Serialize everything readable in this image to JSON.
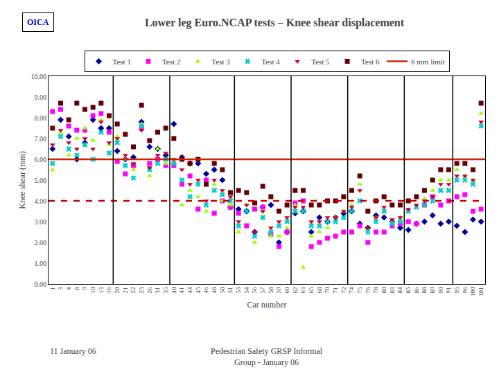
{
  "chart_data": {
    "type": "scatter",
    "title": "Lower leg Euro.NCAP tests – Knee shear displacement",
    "xlabel": "Car number",
    "ylabel": "Knee shear (mm)",
    "categories": [
      "1",
      "3",
      "4",
      "8",
      "9",
      "10",
      "13",
      "16",
      "20",
      "21",
      "22",
      "23",
      "26",
      "31",
      "35",
      "40",
      "41",
      "44",
      "45",
      "46",
      "48",
      "50",
      "51",
      "53",
      "54",
      "56",
      "57",
      "58",
      "59",
      "60",
      "62",
      "63",
      "65",
      "68",
      "70",
      "71",
      "72",
      "74",
      "75",
      "76",
      "78",
      "80",
      "83",
      "84",
      "85",
      "86",
      "88",
      "89",
      "90",
      "91",
      "95",
      "96",
      "100",
      "101"
    ],
    "ylim": [
      0,
      10
    ],
    "yticks": [
      {
        "value": 0.0,
        "label": "0.00"
      },
      {
        "value": 1.0,
        "label": "1.00"
      },
      {
        "value": 2.0,
        "label": "2.00"
      },
      {
        "value": 3.0,
        "label": "3.00"
      },
      {
        "value": 4.0,
        "label": "4.00"
      },
      {
        "value": 5.0,
        "label": "5.00"
      },
      {
        "value": 6.0,
        "label": "6.00"
      },
      {
        "value": 7.0,
        "label": "7.00"
      },
      {
        "value": 8.0,
        "label": "8.00"
      },
      {
        "value": 9.0,
        "label": "9.00"
      },
      {
        "value": 10.0,
        "label": "10.00"
      }
    ],
    "grid": false,
    "legend": "top",
    "series": [
      {
        "name": "Test 1",
        "color": "#000099",
        "marker": "diamond",
        "values": [
          6.5,
          7.9,
          7.1,
          6.0,
          6.8,
          7.9,
          7.5,
          7.5,
          6.4,
          6.0,
          6.1,
          7.8,
          6.6,
          6.5,
          6.2,
          7.7,
          6.1,
          5.8,
          5.8,
          5.3,
          5.5,
          5.0,
          3.7,
          3.6,
          3.5,
          2.5,
          3.7,
          3.8,
          2.0,
          2.5,
          3.4,
          3.5,
          2.5,
          3.2,
          3.0,
          3.2,
          3.4,
          3.5,
          2.9,
          2.7,
          3.3,
          3.2,
          3.0,
          2.7,
          2.6,
          2.9,
          3.0,
          3.3,
          2.9,
          3.0,
          2.8,
          2.5,
          3.1,
          3.0
        ]
      },
      {
        "name": "Test 2",
        "color": "#FF00FF",
        "marker": "square",
        "values": [
          8.3,
          8.4,
          7.6,
          7.4,
          7.4,
          8.1,
          8.2,
          7.3,
          5.9,
          5.3,
          5.7,
          7.5,
          5.8,
          6.0,
          5.7,
          5.7,
          4.8,
          5.2,
          3.6,
          5.0,
          3.4,
          4.0,
          3.7,
          3.4,
          2.8,
          3.6,
          3.7,
          2.4,
          1.8,
          2.5,
          3.9,
          4.0,
          1.8,
          2.0,
          2.2,
          2.3,
          2.5,
          2.5,
          2.8,
          2.0,
          2.5,
          2.5,
          2.8,
          2.9,
          3.0,
          2.9,
          3.8,
          4.2,
          3.8,
          4.0,
          4.2,
          4.3,
          3.5,
          3.6
        ]
      },
      {
        "name": "Test 3",
        "color": "#99FF00",
        "marker": "triangle-up",
        "values": [
          5.5,
          7.3,
          6.2,
          7.0,
          7.5,
          6.9,
          7.9,
          6.7,
          7.1,
          6.0,
          5.5,
          7.7,
          5.2,
          6.5,
          5.8,
          6.0,
          3.8,
          4.5,
          4.2,
          3.5,
          4.8,
          4.0,
          3.8,
          2.5,
          3.8,
          2.0,
          3.5,
          2.3,
          2.3,
          2.7,
          3.8,
          0.8,
          2.3,
          2.5,
          2.7,
          3.2,
          3.5,
          3.8,
          4.8,
          2.6,
          3.2,
          3.5,
          3.0,
          3.2,
          3.5,
          3.7,
          4.1,
          4.5,
          5.0,
          5.0,
          5.5,
          5.2,
          5.0,
          8.2
        ]
      },
      {
        "name": "Test 4",
        "color": "#00CCCC",
        "marker": "x",
        "values": [
          5.8,
          7.1,
          6.5,
          6.2,
          6.7,
          6.0,
          7.3,
          6.3,
          6.8,
          5.7,
          5.1,
          7.6,
          5.5,
          5.8,
          6.0,
          5.8,
          5.0,
          4.2,
          4.8,
          3.8,
          4.5,
          4.3,
          4.0,
          2.8,
          3.5,
          2.3,
          3.2,
          2.5,
          2.8,
          3.0,
          3.5,
          3.5,
          2.8,
          2.8,
          3.0,
          3.0,
          3.2,
          3.5,
          4.0,
          2.5,
          3.0,
          3.5,
          2.9,
          3.0,
          3.5,
          3.7,
          3.8,
          4.0,
          4.5,
          4.5,
          5.0,
          5.0,
          4.8,
          7.6
        ]
      },
      {
        "name": "Test 5",
        "color": "#CC0033",
        "marker": "triangle-down",
        "values": [
          6.7,
          7.4,
          6.8,
          6.5,
          7.0,
          6.5,
          7.8,
          6.8,
          7.0,
          6.2,
          5.8,
          7.4,
          5.6,
          6.2,
          6.3,
          6.0,
          5.5,
          4.8,
          5.0,
          4.0,
          5.0,
          4.5,
          4.2,
          3.0,
          3.8,
          2.5,
          3.5,
          2.7,
          3.0,
          3.2,
          3.7,
          3.7,
          3.0,
          3.0,
          3.2,
          3.2,
          3.5,
          3.7,
          4.5,
          2.7,
          3.2,
          3.7,
          3.1,
          3.2,
          3.6,
          3.8,
          4.0,
          4.2,
          4.8,
          4.8,
          5.2,
          5.2,
          5.0,
          7.8
        ]
      },
      {
        "name": "Test 6",
        "color": "#660000",
        "marker": "square",
        "values": [
          7.5,
          8.7,
          7.9,
          8.7,
          8.4,
          8.5,
          8.7,
          8.1,
          7.7,
          7.2,
          6.6,
          8.6,
          6.9,
          7.3,
          7.5,
          7.0,
          6.0,
          5.8,
          6.0,
          4.8,
          5.8,
          5.5,
          4.4,
          4.5,
          4.4,
          3.9,
          4.7,
          4.2,
          3.5,
          3.8,
          4.5,
          4.5,
          3.8,
          3.8,
          4.0,
          4.0,
          4.2,
          4.5,
          5.2,
          3.5,
          4.0,
          4.2,
          3.8,
          3.8,
          4.0,
          4.2,
          4.5,
          5.0,
          5.5,
          5.5,
          5.8,
          5.8,
          5.5,
          8.7
        ]
      }
    ],
    "reference_lines": [
      {
        "name": "6 mm limit",
        "y": 6.0,
        "color": "#CC2200",
        "line_style": "solid"
      },
      {
        "y": 4.0,
        "color": "#CC0000",
        "line_style": "dashed"
      }
    ],
    "separators_after": [
      "16",
      "35",
      "51",
      "60",
      "72",
      "84",
      "91"
    ],
    "annotations": [
      "OICA",
      "11 January 06",
      "Pedestrian Safety GRSP Informal\nGroup - January 06"
    ]
  }
}
